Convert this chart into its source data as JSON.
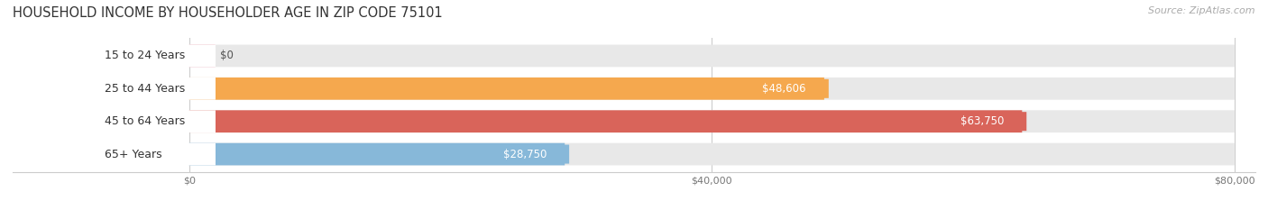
{
  "title": "HOUSEHOLD INCOME BY HOUSEHOLDER AGE IN ZIP CODE 75101",
  "source": "Source: ZipAtlas.com",
  "categories": [
    "15 to 24 Years",
    "25 to 44 Years",
    "45 to 64 Years",
    "65+ Years"
  ],
  "values": [
    0,
    48606,
    63750,
    28750
  ],
  "bar_colors": [
    "#f0a0b0",
    "#f5a84e",
    "#d9645a",
    "#87b8d9"
  ],
  "bar_bg_color": "#e8e8e8",
  "xlim_max": 80000,
  "xticks": [
    0,
    40000,
    80000
  ],
  "xticklabels": [
    "$0",
    "$40,000",
    "$80,000"
  ],
  "title_fontsize": 10.5,
  "source_fontsize": 8,
  "bar_label_fontsize": 8.5,
  "cat_label_fontsize": 9,
  "figsize": [
    14.06,
    2.33
  ],
  "dpi": 100
}
